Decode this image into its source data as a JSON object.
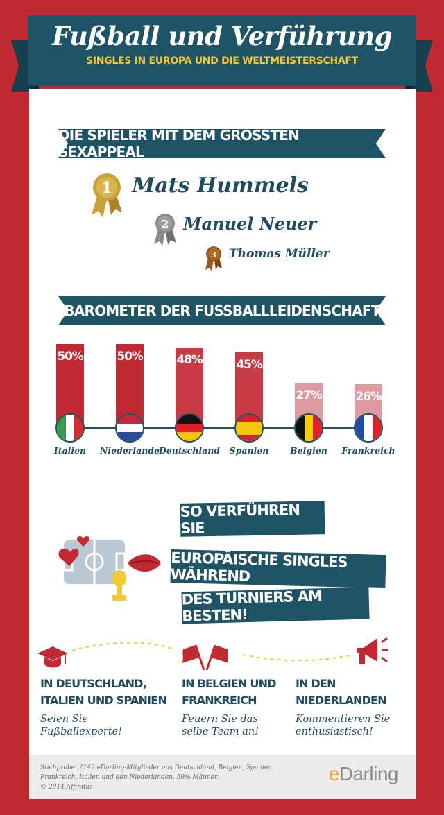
{
  "header": {
    "title": "Fußball und Verführung",
    "subtitle": "SINGLES IN EUROPA UND DIE WELTMEISTERSCHAFT"
  },
  "sexappeal": {
    "heading": "DIE SPIELER MIT DEM GRÖSSTEN SEXAPPEAL",
    "ranking": [
      {
        "rank": "1",
        "name": "Mats Hummels",
        "medal_color": "#c9a23d"
      },
      {
        "rank": "2",
        "name": "Manuel Neuer",
        "medal_color": "#8a8a8a"
      },
      {
        "rank": "3",
        "name": "Thomas Müller",
        "medal_color": "#9b5a1c"
      }
    ]
  },
  "barometer": {
    "heading": "BAROMETER DER FUSSBALLLEIDENSCHAFT"
  },
  "chart_data": {
    "type": "bar",
    "categories": [
      "Italien",
      "Niederlande",
      "Deutschland",
      "Spanien",
      "Belgien",
      "Frankreich"
    ],
    "values": [
      50,
      50,
      48,
      45,
      27,
      26
    ],
    "value_labels": [
      "50%",
      "50%",
      "48%",
      "45%",
      "27%",
      "26%"
    ],
    "ylim": [
      0,
      50
    ],
    "colors": [
      "#c22a33",
      "#c22a33",
      "#c83a44",
      "#c83a44",
      "#dd9aa0",
      "#dd9aa0"
    ]
  },
  "seduction": {
    "lines": [
      "SO VERFÜHREN SIE",
      "EUROPÄISCHE SINGLES WÄHREND",
      "DES TURNIERS AM BESTEN!"
    ]
  },
  "tips": [
    {
      "icon": "graduation-cap-icon",
      "head_lines": [
        "IN DEUTSCHLAND,",
        "ITALIEN UND SPANIEN"
      ],
      "body_lines": [
        "Seien Sie",
        "Fußballexperte!"
      ]
    },
    {
      "icon": "flags-icon",
      "head_lines": [
        "IN BELGIEN UND",
        "FRANKREICH"
      ],
      "body_lines": [
        "Feuern Sie das",
        "selbe Team an!"
      ]
    },
    {
      "icon": "megaphone-icon",
      "head_lines": [
        "IN DEN",
        "NIEDERLANDEN"
      ],
      "body_lines": [
        "Kommentieren Sie",
        "enthusiastisch!"
      ]
    }
  ],
  "footer": {
    "lines": [
      "Stichprobe: 2142 eDarling-Mitglieder aus Deutschland, Belgien, Spanien,",
      "Frankreich, Italien und den Niederlanden. 59% Männer.",
      "© 2014 Affinitas"
    ],
    "logo_e": "e",
    "logo_rest": "Darling"
  },
  "colors": {
    "background_red": "#c22a33",
    "navy": "#1f5366",
    "gold": "#f2c935"
  }
}
